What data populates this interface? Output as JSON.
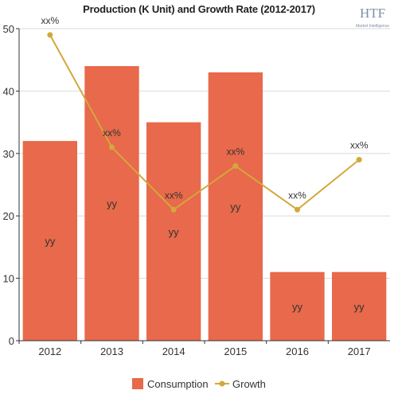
{
  "colors": {
    "bar": "#E8694B",
    "line": "#D4A73B",
    "axis": "#333333",
    "grid": "#d9d9d9"
  },
  "logo": {
    "text": "HTF",
    "subtext": "Market Intelligence"
  },
  "chart_data": {
    "type": "bar",
    "title": "Production (K Unit) and Growth Rate (2012-2017)",
    "categories": [
      "2012",
      "2013",
      "2014",
      "2015",
      "2016",
      "2017"
    ],
    "ylim": [
      0,
      50
    ],
    "yticks": [
      0,
      10,
      20,
      30,
      40,
      50
    ],
    "grid": true,
    "legend_position": "bottom",
    "series": [
      {
        "name": "Consumption",
        "type": "bar",
        "values": [
          32,
          44,
          35,
          43,
          11,
          11
        ],
        "labels": [
          "yy",
          "yy",
          "yy",
          "yy",
          "yy",
          "yy"
        ]
      },
      {
        "name": "Growth",
        "type": "line",
        "values": [
          49,
          31,
          21,
          28,
          21,
          29
        ],
        "labels": [
          "xx%",
          "xx%",
          "xx%",
          "xx%",
          "xx%",
          "xx%"
        ]
      }
    ]
  }
}
